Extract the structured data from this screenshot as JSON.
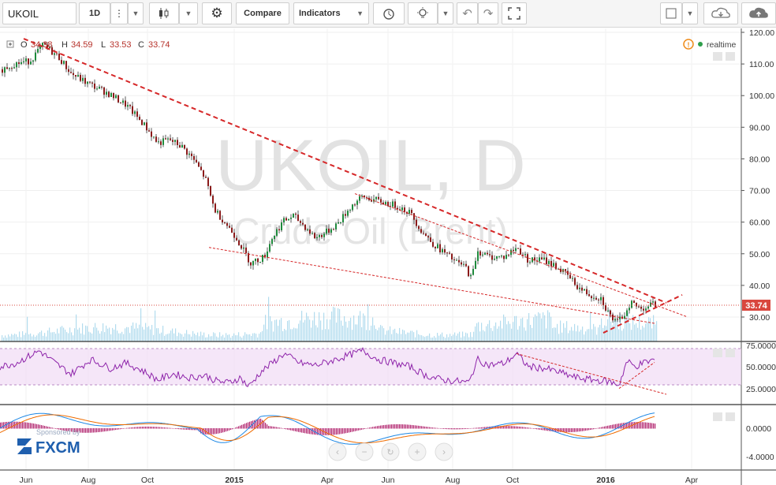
{
  "toolbar": {
    "symbol": "UKOIL",
    "interval": "1D",
    "compare_label": "Compare",
    "indicators_label": "Indicators"
  },
  "legend": {
    "o_label": "O",
    "o_value": "34.38",
    "h_label": "H",
    "h_value": "34.59",
    "l_label": "L",
    "l_value": "33.53",
    "c_label": "C",
    "c_value": "33.74",
    "realtime_label": "realtime"
  },
  "watermark": {
    "line1": "UKOIL, D",
    "line2": "Crude Oil (Brent)"
  },
  "brand": {
    "sponsored": "Sponsored by",
    "logo": "FXCM"
  },
  "colors": {
    "up": "#1e8a3c",
    "down": "#8b1a1a",
    "trend": "#d62728",
    "rsi": "#8e24aa",
    "macd": "#1e88e5",
    "signal": "#ef6c00",
    "volume": "#9fd3ea",
    "price_tag": "#d9473e"
  },
  "chart_data": {
    "type": "candlestick",
    "last_price": 33.74,
    "price_axis": {
      "ticks": [
        "120.00",
        "110.00",
        "100.00",
        "90.00",
        "80.00",
        "70.00",
        "60.00",
        "50.00",
        "40.00",
        "30.00"
      ],
      "range": [
        20,
        122
      ]
    },
    "rsi_axis": {
      "ticks": [
        "75.0000",
        "50.0000",
        "25.0000"
      ],
      "range": [
        0,
        100
      ],
      "bands": [
        30,
        70
      ]
    },
    "macd_axis": {
      "ticks": [
        "0.0000",
        "-4.0000"
      ]
    },
    "time_labels": [
      "Jun",
      "Aug",
      "Oct",
      "2015",
      "Apr",
      "Jun",
      "Aug",
      "Oct",
      "2016",
      "Apr"
    ],
    "price_keypoints": [
      [
        0,
        108
      ],
      [
        18,
        110
      ],
      [
        38,
        111
      ],
      [
        55,
        116
      ],
      [
        75,
        112
      ],
      [
        90,
        107
      ],
      [
        110,
        104
      ],
      [
        135,
        101
      ],
      [
        160,
        97
      ],
      [
        182,
        91
      ],
      [
        200,
        85
      ],
      [
        215,
        86
      ],
      [
        230,
        84
      ],
      [
        245,
        80
      ],
      [
        260,
        74
      ],
      [
        272,
        64
      ],
      [
        285,
        60
      ],
      [
        300,
        55
      ],
      [
        318,
        47
      ],
      [
        335,
        49
      ],
      [
        345,
        55
      ],
      [
        358,
        60
      ],
      [
        372,
        62
      ],
      [
        385,
        59
      ],
      [
        400,
        55
      ],
      [
        415,
        57
      ],
      [
        430,
        60
      ],
      [
        445,
        65
      ],
      [
        460,
        68
      ],
      [
        475,
        67
      ],
      [
        490,
        66
      ],
      [
        505,
        65
      ],
      [
        520,
        63
      ],
      [
        535,
        57
      ],
      [
        550,
        53
      ],
      [
        565,
        50
      ],
      [
        580,
        47
      ],
      [
        590,
        46
      ],
      [
        598,
        42
      ],
      [
        605,
        51
      ],
      [
        620,
        49
      ],
      [
        640,
        49
      ],
      [
        655,
        52
      ],
      [
        670,
        48
      ],
      [
        690,
        48
      ],
      [
        705,
        46
      ],
      [
        720,
        43
      ],
      [
        735,
        39
      ],
      [
        748,
        37
      ],
      [
        762,
        36
      ],
      [
        772,
        31
      ],
      [
        782,
        28
      ],
      [
        792,
        31
      ],
      [
        800,
        35
      ],
      [
        808,
        33
      ],
      [
        818,
        33
      ],
      [
        826,
        34
      ],
      [
        832,
        33.74
      ]
    ],
    "rsi_keypoints": [
      [
        0,
        50
      ],
      [
        20,
        55
      ],
      [
        50,
        72
      ],
      [
        70,
        55
      ],
      [
        90,
        40
      ],
      [
        115,
        60
      ],
      [
        140,
        48
      ],
      [
        160,
        55
      ],
      [
        180,
        45
      ],
      [
        200,
        32
      ],
      [
        220,
        40
      ],
      [
        240,
        35
      ],
      [
        260,
        38
      ],
      [
        275,
        30
      ],
      [
        290,
        28
      ],
      [
        305,
        35
      ],
      [
        315,
        22
      ],
      [
        330,
        42
      ],
      [
        345,
        55
      ],
      [
        360,
        68
      ],
      [
        380,
        55
      ],
      [
        400,
        52
      ],
      [
        420,
        58
      ],
      [
        440,
        65
      ],
      [
        460,
        72
      ],
      [
        480,
        60
      ],
      [
        500,
        55
      ],
      [
        520,
        50
      ],
      [
        540,
        38
      ],
      [
        560,
        32
      ],
      [
        580,
        30
      ],
      [
        595,
        28
      ],
      [
        605,
        60
      ],
      [
        620,
        52
      ],
      [
        640,
        55
      ],
      [
        655,
        68
      ],
      [
        670,
        50
      ],
      [
        690,
        48
      ],
      [
        710,
        42
      ],
      [
        730,
        35
      ],
      [
        750,
        32
      ],
      [
        770,
        30
      ],
      [
        785,
        25
      ],
      [
        795,
        58
      ],
      [
        805,
        50
      ],
      [
        815,
        55
      ],
      [
        830,
        60
      ]
    ],
    "trendlines_price": [
      [
        [
          30,
          118
        ],
        [
          845,
          34.5
        ]
      ],
      [
        [
          265,
          52
        ],
        [
          830,
          28
        ]
      ],
      [
        [
          450,
          69
        ],
        [
          872,
          30
        ]
      ],
      [
        [
          765,
          25
        ],
        [
          865,
          37
        ]
      ]
    ]
  }
}
